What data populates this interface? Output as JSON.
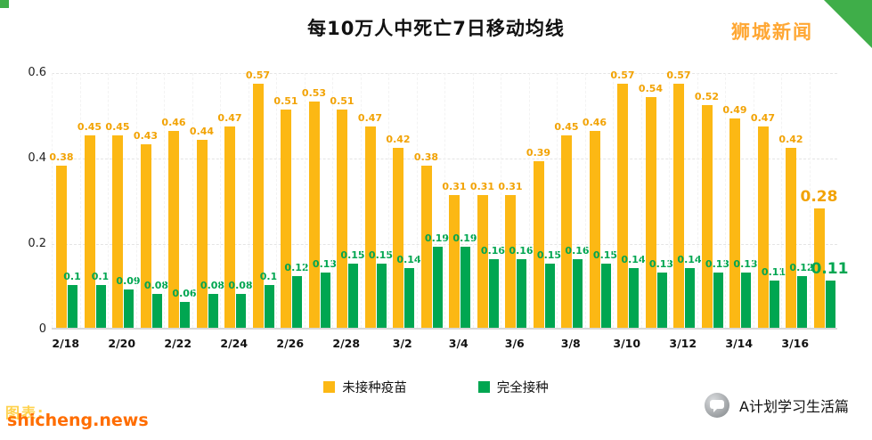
{
  "header": {
    "title": "每10万人中死亡7日移动均线",
    "brand": "狮城新闻"
  },
  "chart_data": {
    "type": "bar",
    "title": "每10万人中死亡7日移动均线",
    "categories": [
      "2/18",
      "2/19",
      "2/20",
      "2/21",
      "2/22",
      "2/23",
      "2/24",
      "2/25",
      "2/26",
      "2/27",
      "2/28",
      "3/1",
      "3/2",
      "3/3",
      "3/4",
      "3/5",
      "3/6",
      "3/7",
      "3/8",
      "3/9",
      "3/10",
      "3/11",
      "3/12",
      "3/13",
      "3/14",
      "3/15",
      "3/16",
      "3/17"
    ],
    "x_tick_labels": [
      "2/18",
      "2/20",
      "2/22",
      "2/24",
      "2/26",
      "2/28",
      "3/2",
      "3/4",
      "3/6",
      "3/8",
      "3/10",
      "3/12",
      "3/14",
      "3/16"
    ],
    "series": [
      {
        "name": "未接种疫苗",
        "color": "#fcb814",
        "values": [
          0.38,
          0.45,
          0.45,
          0.43,
          0.46,
          0.44,
          0.47,
          0.57,
          0.51,
          0.53,
          0.51,
          0.47,
          0.42,
          0.38,
          0.31,
          0.31,
          0.31,
          0.39,
          0.45,
          0.46,
          0.57,
          0.54,
          0.57,
          0.52,
          0.49,
          0.47,
          0.42,
          0.28
        ]
      },
      {
        "name": "完全接种",
        "color": "#00a651",
        "values": [
          0.1,
          0.1,
          0.09,
          0.08,
          0.06,
          0.08,
          0.08,
          0.1,
          0.12,
          0.13,
          0.15,
          0.15,
          0.14,
          0.19,
          0.19,
          0.16,
          0.16,
          0.15,
          0.16,
          0.15,
          0.14,
          0.13,
          0.14,
          0.13,
          0.13,
          0.11,
          0.12,
          0.11
        ]
      }
    ],
    "ylim": [
      0,
      0.6
    ],
    "yticks": [
      0,
      0.2,
      0.4,
      0.6
    ],
    "grid": true,
    "legend_position": "bottom"
  },
  "footer": {
    "watermark_back": "图表:",
    "watermark": "shicheng.news",
    "account": "A计划学习生活篇"
  },
  "colors": {
    "unvaccinated": "#fcb814",
    "vaccinated": "#00a651",
    "brand_green": "#3fae49",
    "brand_orange": "#ffa733",
    "watermark_orange": "#ff6d00"
  }
}
